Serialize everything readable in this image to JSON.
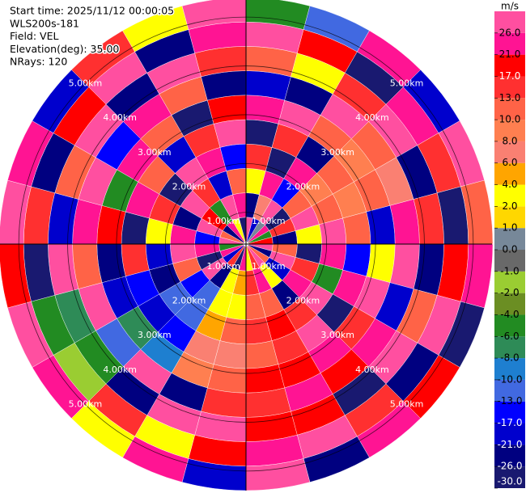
{
  "chart_data": {
    "type": "ppi",
    "info": [
      "Start time: 2025/11/12 00:00:05",
      "WLS200s-181",
      "Field: VEL",
      "Elevation(deg): 35.00",
      "NRays: 120"
    ],
    "azimuth_edges": [
      0,
      15,
      30,
      45,
      60,
      75,
      90,
      105,
      120,
      135,
      150,
      165,
      180,
      195,
      210,
      225,
      240,
      255,
      270,
      285,
      300,
      315,
      330,
      345,
      360
    ],
    "range_edges": [
      0.4,
      0.9,
      1.4,
      1.9,
      2.4,
      2.9,
      3.4,
      3.9,
      4.4,
      4.9,
      5.4
    ],
    "rlim": [
      0.35,
      5.4
    ],
    "rticks": [
      {
        "value": 1,
        "label": "1.00km"
      },
      {
        "value": 2,
        "label": "2.00km"
      },
      {
        "value": 3,
        "label": "3.00km"
      },
      {
        "value": 4,
        "label": "4.00km"
      },
      {
        "value": 5,
        "label": "5.00km"
      }
    ],
    "values": [
      [
        28,
        -24,
        3,
        15,
        -28,
        24,
        -19,
        11,
        28,
        -5
      ],
      [
        -19,
        7,
        24,
        -28,
        15,
        28,
        -24,
        3,
        19,
        -11
      ],
      [
        0.5,
        28,
        -15,
        24,
        -24,
        11,
        28,
        15,
        -28,
        24
      ],
      [
        24,
        -28,
        11,
        9,
        12,
        9,
        11,
        28,
        24,
        -19
      ],
      [
        -5,
        15,
        28,
        11,
        9,
        12,
        7,
        -24,
        15,
        28
      ],
      [
        19,
        -24,
        3,
        28,
        11,
        -19,
        24,
        15,
        -28,
        11
      ],
      [
        28,
        11,
        -28,
        24,
        -15,
        3,
        28,
        -24,
        19,
        24
      ],
      [
        -24,
        28,
        15,
        -5,
        24,
        28,
        -19,
        11,
        28,
        -28
      ],
      [
        11,
        -19,
        24,
        28,
        -28,
        15,
        24,
        28,
        -24,
        19
      ],
      [
        28,
        3,
        -24,
        15,
        28,
        24,
        19,
        -28,
        15,
        24
      ],
      [
        15,
        24,
        11,
        19,
        15,
        19,
        24,
        19,
        28,
        -24
      ],
      [
        3,
        15,
        11,
        15,
        12,
        19,
        15,
        19,
        24,
        28
      ],
      [
        24,
        5,
        3,
        11,
        7,
        12,
        15,
        28,
        19,
        -19
      ],
      [
        -28,
        3,
        3,
        5,
        7,
        9,
        -24,
        28,
        3,
        24
      ],
      [
        15,
        -24,
        -11,
        -11,
        -15,
        -9,
        28,
        -24,
        15,
        3
      ],
      [
        -19,
        28,
        -15,
        -11,
        -19,
        -7,
        -11,
        -5,
        -1.5,
        24
      ],
      [
        24,
        -28,
        11,
        -24,
        -15,
        -19,
        28,
        -7,
        -5,
        28
      ],
      [
        -5,
        24,
        28,
        -19,
        15,
        -24,
        11,
        28,
        -28,
        19
      ],
      [
        28,
        -15,
        24,
        3,
        -28,
        19,
        24,
        -19,
        15,
        28
      ],
      [
        11,
        28,
        -24,
        15,
        24,
        -5,
        28,
        11,
        -24,
        24
      ],
      [
        -24,
        19,
        28,
        -28,
        11,
        24,
        -15,
        28,
        19,
        -19
      ],
      [
        24,
        -5,
        15,
        28,
        -19,
        11,
        24,
        -24,
        28,
        15
      ],
      [
        3,
        28,
        -19,
        24,
        15,
        -28,
        11,
        28,
        -24,
        3
      ],
      [
        -28,
        24,
        11,
        -15,
        28,
        19,
        -24,
        15,
        24,
        28
      ]
    ],
    "colorbar": {
      "label": "m/s",
      "ticks": [
        {
          "value": -30,
          "label": "-30.0"
        },
        {
          "value": -26,
          "label": "-26.0"
        },
        {
          "value": -21,
          "label": "-21.0"
        },
        {
          "value": -17,
          "label": "-17.0"
        },
        {
          "value": -13,
          "label": "-13.0"
        },
        {
          "value": -10,
          "label": "-10.0"
        },
        {
          "value": -8,
          "label": "-8.0"
        },
        {
          "value": -6,
          "label": "-6.0"
        },
        {
          "value": -4,
          "label": "-4.0"
        },
        {
          "value": -2,
          "label": "-2.0"
        },
        {
          "value": -1,
          "label": "-1.0"
        },
        {
          "value": 0,
          "label": "0.0"
        },
        {
          "value": 1,
          "label": "1.0"
        },
        {
          "value": 2,
          "label": "2.0"
        },
        {
          "value": 4,
          "label": "4.0"
        },
        {
          "value": 6,
          "label": "6.0"
        },
        {
          "value": 8,
          "label": "8.0"
        },
        {
          "value": 10,
          "label": "10.0"
        },
        {
          "value": 13,
          "label": "13.0"
        },
        {
          "value": 17,
          "label": "17.0"
        },
        {
          "value": 21,
          "label": "21.0"
        },
        {
          "value": 26,
          "label": "26.0"
        }
      ],
      "colors": [
        "#191970",
        "#000080",
        "#0000cd",
        "#0000ff",
        "#4169e1",
        "#1e7fd0",
        "#2e8b57",
        "#228b22",
        "#6b8e23",
        "#9acd32",
        "#696969",
        "#778899",
        "#ffd700",
        "#ffff00",
        "#ffa500",
        "#fa8072",
        "#ff7f50",
        "#ff6347",
        "#ff3030",
        "#ff0000",
        "#ff1493",
        "#ff4fa0"
      ]
    }
  }
}
